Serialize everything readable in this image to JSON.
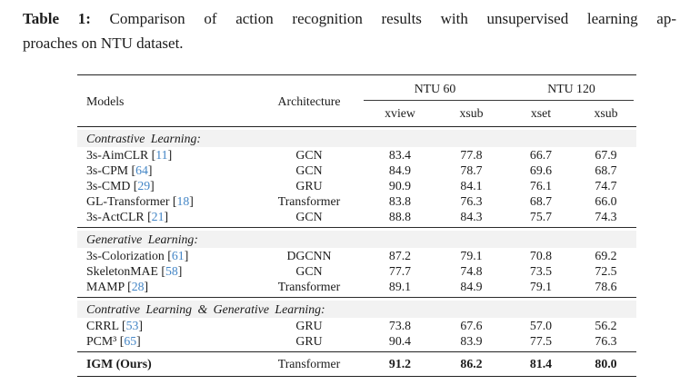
{
  "caption": {
    "label": "Table 1:",
    "line1_rest": "Comparison of action recognition results with unsupervised learning ap-",
    "line2": "proaches on NTU dataset."
  },
  "table": {
    "headers": {
      "models": "Models",
      "architecture": "Architecture",
      "group_ntu60": "NTU 60",
      "group_ntu120": "NTU 120",
      "subcols": [
        "xview",
        "xsub",
        "xset",
        "xsub"
      ]
    },
    "citation_brackets": {
      "open": "[",
      "close": "]"
    },
    "sections": [
      {
        "title": "Contrastive Learning:",
        "rows": [
          {
            "model": "3s-AimCLR",
            "cite": "11",
            "arch": "GCN",
            "values": [
              "83.4",
              "77.8",
              "66.7",
              "67.9"
            ]
          },
          {
            "model": "3s-CPM",
            "cite": "64",
            "arch": "GCN",
            "values": [
              "84.9",
              "78.7",
              "69.6",
              "68.7"
            ]
          },
          {
            "model": "3s-CMD",
            "cite": "29",
            "arch": "GRU",
            "values": [
              "90.9",
              "84.1",
              "76.1",
              "74.7"
            ]
          },
          {
            "model": "GL-Transformer",
            "cite": "18",
            "arch": "Transformer",
            "values": [
              "83.8",
              "76.3",
              "68.7",
              "66.0"
            ]
          },
          {
            "model": "3s-ActCLR",
            "cite": "21",
            "arch": "GCN",
            "values": [
              "88.8",
              "84.3",
              "75.7",
              "74.3"
            ]
          }
        ]
      },
      {
        "title": "Generative Learning:",
        "rows": [
          {
            "model": "3s-Colorization",
            "cite": "61",
            "arch": "DGCNN",
            "values": [
              "87.2",
              "79.1",
              "70.8",
              "69.2"
            ]
          },
          {
            "model": "SkeletonMAE",
            "cite": "58",
            "arch": "GCN",
            "values": [
              "77.7",
              "74.8",
              "73.5",
              "72.5"
            ]
          },
          {
            "model": "MAMP",
            "cite": "28",
            "arch": "Transformer",
            "values": [
              "89.1",
              "84.9",
              "79.1",
              "78.6"
            ]
          }
        ]
      },
      {
        "title": "Contrative Learning & Generative Learning:",
        "rows": [
          {
            "model": "CRRL",
            "cite": "53",
            "arch": "GRU",
            "values": [
              "73.8",
              "67.6",
              "57.0",
              "56.2"
            ]
          },
          {
            "model": "PCM³",
            "cite": "65",
            "arch": "GRU",
            "values": [
              "90.4",
              "83.9",
              "77.5",
              "76.3"
            ]
          }
        ]
      }
    ],
    "final_row": {
      "model": "IGM (Ours)",
      "arch": "Transformer",
      "values": [
        "91.2",
        "86.2",
        "81.4",
        "80.0"
      ]
    }
  },
  "colors": {
    "citation_blue": "#4486c6",
    "stripe_gray": "#f2f2f2",
    "rule_dark": "#222222"
  }
}
